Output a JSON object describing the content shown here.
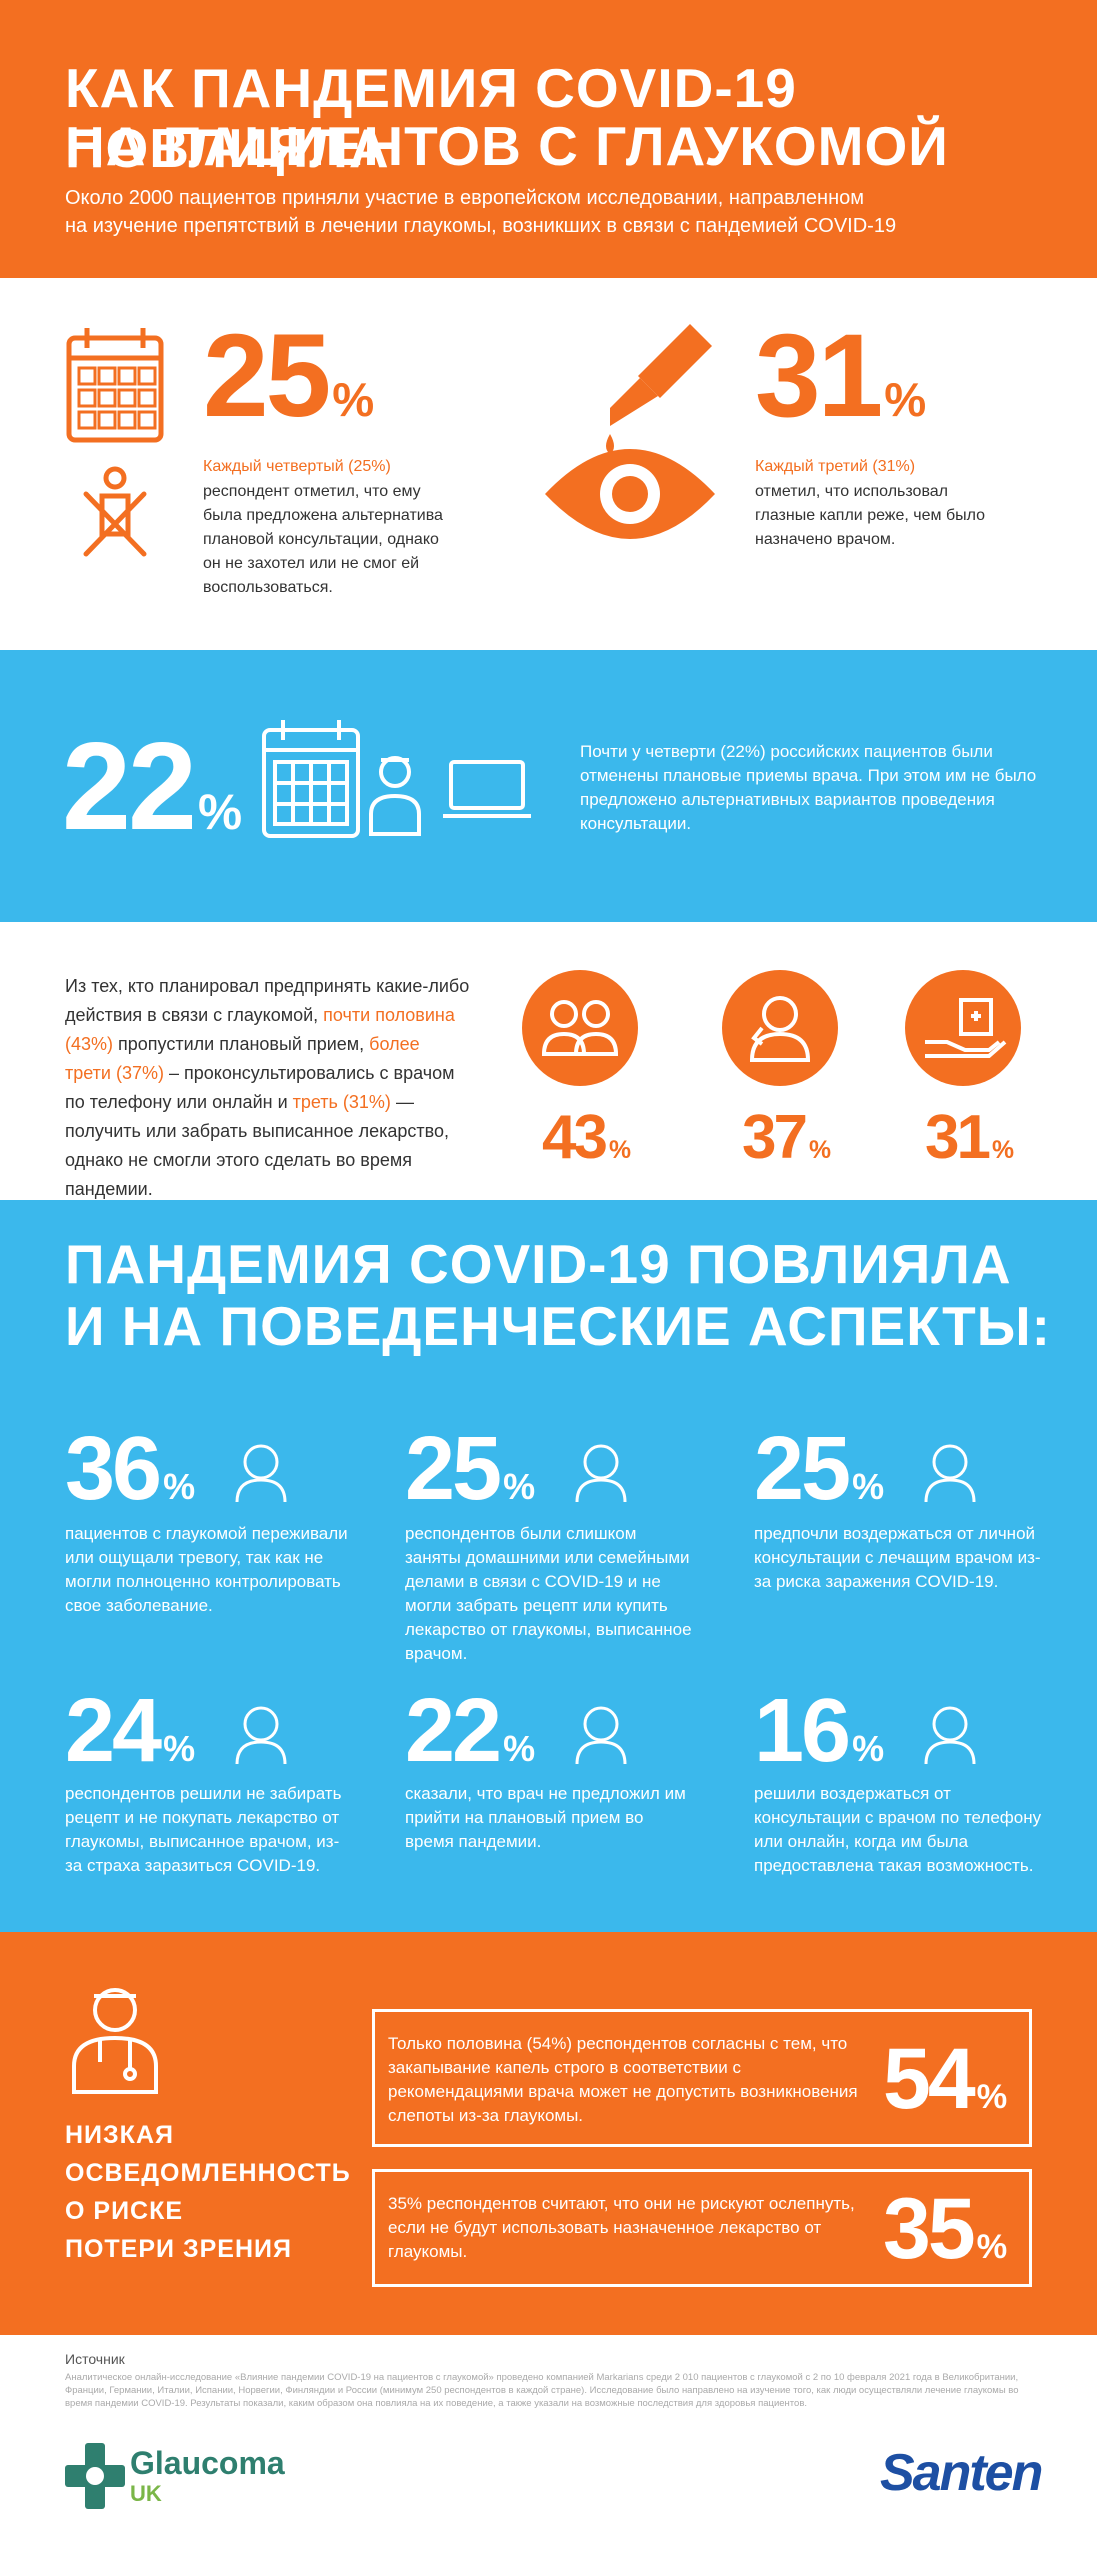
{
  "header": {
    "title_lines": [
      "КАК ПАНДЕМИЯ COVID-19 ПОВЛИЯЛА",
      "НА ПАЦИЕНТОВ С ГЛАУКОМОЙ"
    ],
    "subtitle_lines": [
      "Около 2000 пациентов приняли участие в европейском исследовании, направленном",
      "на изучение препятствий в лечении глаукомы, возникших в связи с пандемией COVID-19"
    ]
  },
  "stats_top": [
    {
      "number": "25",
      "unit": "%",
      "label": "Каждый четвертый (25%)",
      "text": "респондент отметил, что ему была предложена альтернатива плановой консультации, однако он не захотел или не смог ей воспользоваться."
    },
    {
      "number": "31",
      "unit": "%",
      "label": "Каждый третий (31%)",
      "text": "отметил, что использовал глазные капли реже, чем было назначено врачом."
    }
  ],
  "russia": {
    "number": "22",
    "unit": "%",
    "text": "Почти у четверти (22%) российских пациентов были отменены плановые приемы врача. При этом им не было предложено альтернативных вариантов проведения консультации."
  },
  "actions": {
    "segments": [
      {
        "text": "Из тех, кто планировал предпринять какие-либо действия в связи с глаукомой, "
      },
      {
        "text": "почти половина (43%)",
        "color": "#f36f21"
      },
      {
        "text": " пропустили плановый прием, "
      },
      {
        "text": "более трети (37%)",
        "color": "#f36f21"
      },
      {
        "text": " – проконсультировались с врачом по телефону или онлайн и "
      },
      {
        "text": "треть (31%)",
        "color": "#f36f21"
      },
      {
        "text": " — получить или забрать выписанное лекарство, однако не смогли этого сделать во время пандемии."
      }
    ],
    "circles": [
      {
        "number": "43",
        "unit": "%"
      },
      {
        "number": "37",
        "unit": "%"
      },
      {
        "number": "31",
        "unit": "%"
      }
    ]
  },
  "behavior": {
    "title_lines": [
      "ПАНДЕМИЯ COVID-19 ПОВЛИЯЛА",
      "И НА ПОВЕДЕНЧЕСКИЕ АСПЕКТЫ:"
    ],
    "items": [
      {
        "number": "36",
        "unit": "%",
        "text": "пациентов с глаукомой переживали или ощущали тревогу, так как не могли полноценно контролировать свое заболевание."
      },
      {
        "number": "25",
        "unit": "%",
        "text": "респондентов были слишком заняты домашними или семейными делами в связи с COVID-19 и не могли забрать рецепт или купить лекарство от глаукомы, выписанное врачом."
      },
      {
        "number": "25",
        "unit": "%",
        "text": "предпочли воздержаться от личной консультации с лечащим врачом из-за риска заражения COVID-19."
      },
      {
        "number": "24",
        "unit": "%",
        "text": "респондентов решили не забирать рецепт и не покупать лекарство от глаукомы, выписанное врачом, из-за страха заразиться COVID-19."
      },
      {
        "number": "22",
        "unit": "%",
        "text": "сказали, что врач не предложил им прийти на плановый прием во время пандемии."
      },
      {
        "number": "16",
        "unit": "%",
        "text": "решили воздержаться от консультации с врачом по телефону или онлайн, когда им была предоставлена такая возможность."
      }
    ]
  },
  "awareness": {
    "heading_lines": [
      "НИЗКАЯ",
      "ОСВЕДОМЛЕННОСТЬ",
      "О РИСКЕ",
      "ПОТЕРИ ЗРЕНИЯ"
    ],
    "boxes": [
      {
        "text": "Только половина (54%) респондентов согласны с тем, что закапывание капель строго в соответствии с рекомендациями врача может не допустить возникновения слепоты из-за глаукомы.",
        "number": "54",
        "unit": "%"
      },
      {
        "text": "35% респондентов считают, что они не рискуют ослепнуть, если не будут использовать назначенное лекарство от глаукомы.",
        "number": "35",
        "unit": "%"
      }
    ]
  },
  "footer": {
    "source_label": "Источник",
    "source_text": "Аналитическое онлайн-исследование «Влияние пандемии COVID-19 на пациентов с глаукомой» проведено компанией Markarians среди 2 010 пациентов с глаукомой с 2 по 10 февраля 2021 года в Великобритании, Франции, Германии, Италии, Испании, Норвегии, Финляндии и России (минимум 250 респондентов в каждой стране). Исследование было направлено на изучение того, как люди осуществляли лечение глаукомы во время пандемии COVID-19. Результаты показали, каким образом она повлияла на их поведение, а также указали на возможные последствия для здоровья пациентов.",
    "logo_left": "Glaucoma",
    "logo_left_sub": "UK",
    "logo_right": "Santen"
  }
}
